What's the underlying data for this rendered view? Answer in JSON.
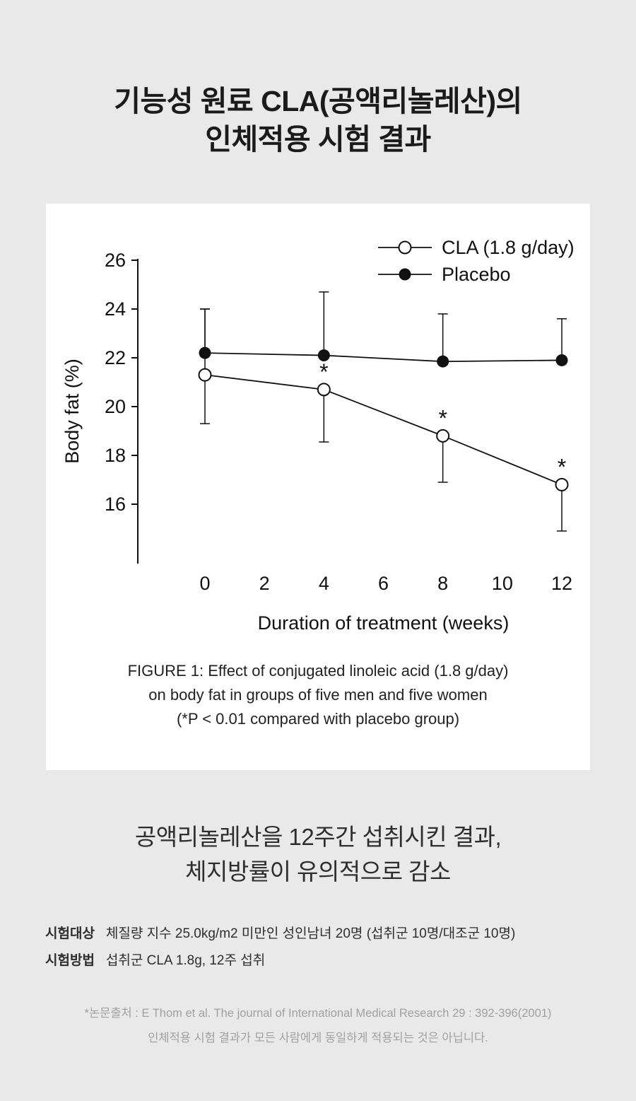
{
  "header": {
    "title_line1": "기능성 원료 CLA(공액리놀레산)의",
    "title_line2": "인체적용 시험 결과"
  },
  "figure": {
    "caption_lines": [
      "FIGURE 1: Effect of conjugated linoleic acid (1.8 g/day)",
      "on body fat in groups of five men and five women",
      "(*P < 0.01 compared with placebo group)"
    ]
  },
  "result": {
    "line1": "공액리놀레산을 12주간 섭취시킨 결과,",
    "line2": "체지방률이 유의적으로 감소"
  },
  "info": {
    "subject_label": "시험대상",
    "subject_value": "체질량 지수 25.0kg/m2 미만인 성인남녀 20명 (섭취군 10명/대조군 10명)",
    "method_label": "시험방법",
    "method_value": "섭취군 CLA 1.8g, 12주 섭취"
  },
  "footnote": {
    "source": "*논문출처 : E Thom et al. The journal of International Medical Research 29 : 392-396(2001)",
    "disclaimer": "인체적용 시험 결과가 모든 사람에게 동일하게 적용되는 것은 아닙니다."
  },
  "colors": {
    "background": "#e9e9e9",
    "card": "#ffffff",
    "ink": "#111111",
    "muted_text": "#a1a1a1"
  },
  "chart_data": {
    "type": "line",
    "title": "",
    "xlabel": "Duration of treatment (weeks)",
    "ylabel": "Body fat (%)",
    "x": [
      0,
      4,
      8,
      12
    ],
    "xticks": [
      0,
      2,
      4,
      6,
      8,
      10,
      12
    ],
    "yticks": [
      16,
      18,
      20,
      22,
      24,
      26
    ],
    "xlim": [
      0,
      12
    ],
    "ylim": [
      14,
      26
    ],
    "grid": false,
    "legend_position": "top-right",
    "series": [
      {
        "name": "CLA (1.8 g/day)",
        "marker": "open-circle",
        "values": [
          21.3,
          20.7,
          18.8,
          16.8
        ],
        "err_up": [
          2.7,
          0,
          0,
          0
        ],
        "err_down": [
          2.0,
          2.15,
          1.9,
          1.9
        ],
        "annotations": [
          "",
          "*",
          "*",
          "*"
        ]
      },
      {
        "name": "Placebo",
        "marker": "filled-circle",
        "values": [
          22.2,
          22.1,
          21.85,
          21.9
        ],
        "err_up": [
          1.8,
          2.6,
          1.95,
          1.7
        ],
        "err_down": [
          0,
          0,
          0,
          0
        ],
        "annotations": [
          "",
          "",
          "",
          ""
        ]
      }
    ]
  }
}
